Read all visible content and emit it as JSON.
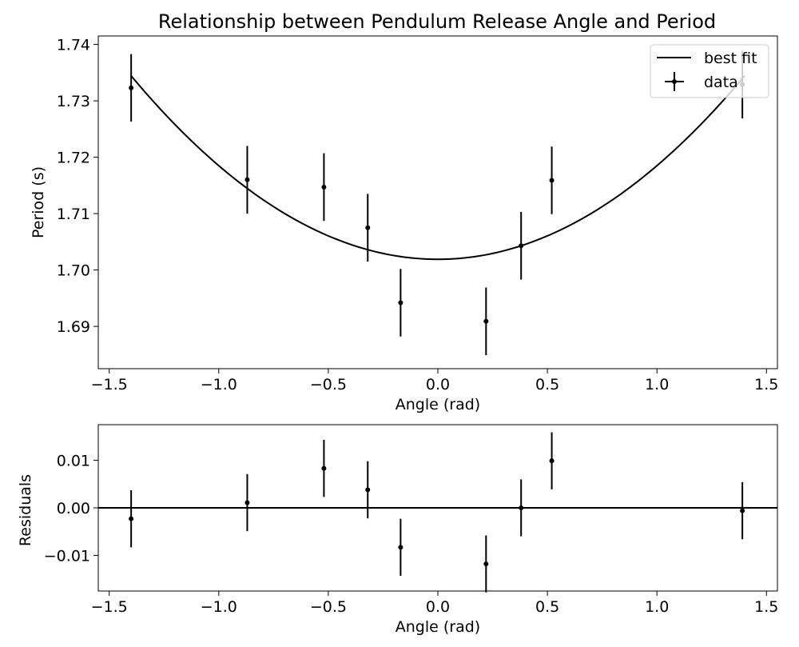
{
  "chart_data": [
    {
      "type": "line",
      "title": "Relationship between Pendulum Release Angle and Period",
      "xlabel": "Angle (rad)",
      "ylabel": "Period (s)",
      "xlim": [
        -1.55,
        1.55
      ],
      "ylim": [
        1.6825,
        1.7415
      ],
      "xticks": [
        -1.5,
        -1.0,
        -0.5,
        0.0,
        0.5,
        1.0,
        1.5
      ],
      "xtick_labels": [
        "−1.5",
        "−1.0",
        "−0.5",
        "0.0",
        "0.5",
        "1.0",
        "1.5"
      ],
      "yticks": [
        1.69,
        1.7,
        1.71,
        1.72,
        1.73,
        1.74
      ],
      "ytick_labels": [
        "1.69",
        "1.70",
        "1.71",
        "1.72",
        "1.73",
        "1.74"
      ],
      "grid": false,
      "legend": {
        "placement": "top-right",
        "entries": [
          "best fit",
          "data"
        ]
      },
      "series": [
        {
          "name": "best fit",
          "kind": "line",
          "color": "#000000",
          "fit": {
            "form": "quadratic",
            "a": 0.0166,
            "b": 0.0,
            "c": 1.7019
          },
          "x_range": [
            -1.4,
            1.4
          ]
        },
        {
          "name": "data",
          "kind": "errorbar",
          "color": "#000000",
          "x": [
            -1.4,
            -0.87,
            -0.52,
            -0.32,
            -0.17,
            0.22,
            0.38,
            0.52,
            1.39
          ],
          "y": [
            1.7323,
            1.716,
            1.7147,
            1.7075,
            1.6942,
            1.6909,
            1.7043,
            1.7159,
            1.7329
          ],
          "yerr": 0.006
        }
      ]
    },
    {
      "type": "scatter",
      "title": "",
      "xlabel": "Angle (rad)",
      "ylabel": "Residuals",
      "xlim": [
        -1.55,
        1.55
      ],
      "ylim": [
        -0.0175,
        0.0175
      ],
      "xticks": [
        -1.5,
        -1.0,
        -0.5,
        0.0,
        0.5,
        1.0,
        1.5
      ],
      "xtick_labels": [
        "−1.5",
        "−1.0",
        "−0.5",
        "0.0",
        "0.5",
        "1.0",
        "1.5"
      ],
      "yticks": [
        -0.01,
        0.0,
        0.01
      ],
      "ytick_labels": [
        "−0.01",
        "0.00",
        "0.01"
      ],
      "grid": false,
      "zero_line": true,
      "series": [
        {
          "kind": "errorbar",
          "color": "#000000",
          "x": [
            -1.4,
            -0.87,
            -0.52,
            -0.32,
            -0.17,
            0.22,
            0.38,
            0.52,
            1.39
          ],
          "y": [
            -0.0023,
            0.0011,
            0.0083,
            0.0038,
            -0.0083,
            -0.0118,
            0.0,
            0.0099,
            -0.0006
          ],
          "yerr": 0.006
        }
      ]
    }
  ]
}
